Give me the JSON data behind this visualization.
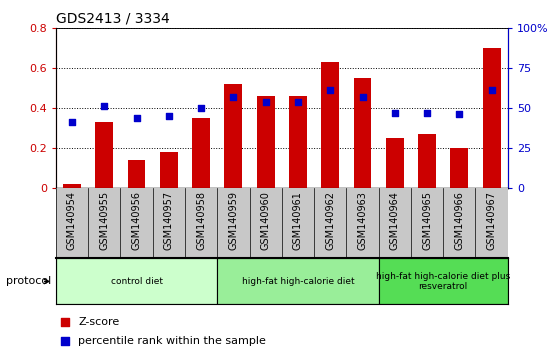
{
  "title": "GDS2413 / 3334",
  "samples": [
    "GSM140954",
    "GSM140955",
    "GSM140956",
    "GSM140957",
    "GSM140958",
    "GSM140959",
    "GSM140960",
    "GSM140961",
    "GSM140962",
    "GSM140963",
    "GSM140964",
    "GSM140965",
    "GSM140966",
    "GSM140967"
  ],
  "z_scores": [
    0.02,
    0.33,
    0.14,
    0.18,
    0.35,
    0.52,
    0.46,
    0.46,
    0.63,
    0.55,
    0.25,
    0.27,
    0.2,
    0.7
  ],
  "percentile_ranks_pct": [
    41,
    51,
    44,
    45,
    50,
    57,
    54,
    54,
    61,
    57,
    47,
    47,
    46,
    61
  ],
  "bar_color": "#cc0000",
  "dot_color": "#0000cc",
  "ylim_left": [
    0,
    0.8
  ],
  "ylim_right": [
    0,
    100
  ],
  "yticks_left": [
    0.0,
    0.2,
    0.4,
    0.6,
    0.8
  ],
  "ytick_labels_left": [
    "0",
    "0.2",
    "0.4",
    "0.6",
    "0.8"
  ],
  "yticks_right": [
    0,
    25,
    50,
    75,
    100
  ],
  "ytick_labels_right": [
    "0",
    "25",
    "50",
    "75",
    "100%"
  ],
  "protocol_groups": [
    {
      "label": "control diet",
      "start": 0,
      "end": 4,
      "color": "#ccffcc"
    },
    {
      "label": "high-fat high-calorie diet",
      "start": 5,
      "end": 9,
      "color": "#99ee99"
    },
    {
      "label": "high-fat high-calorie diet plus\nresveratrol",
      "start": 10,
      "end": 13,
      "color": "#55dd55"
    }
  ],
  "protocol_label": "protocol",
  "legend_zscore": "Z-score",
  "legend_percentile": "percentile rank within the sample",
  "tick_label_color_left": "#cc0000",
  "tick_label_color_right": "#0000cc",
  "gray_bg": "#c8c8c8",
  "border_color": "#000000"
}
